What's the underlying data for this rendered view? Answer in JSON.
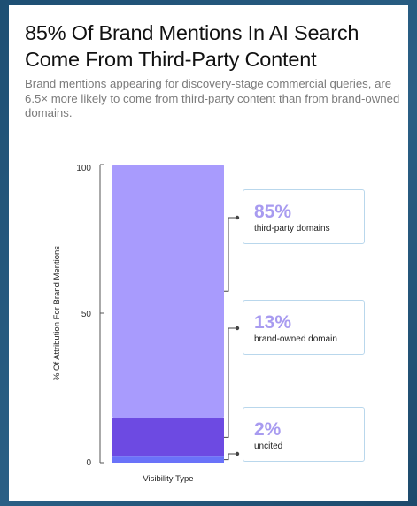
{
  "title": "85% Of Brand Mentions In AI Search Come From Third-Party Content",
  "subtitle": "Brand mentions appearing for discovery-stage commercial queries, are 6.5× more likely to come from third-party content than from brand-owned domains.",
  "colors": {
    "third_party": "#a89bfd",
    "brand_owned": "#6d4ae2",
    "uncited": "#6a72f9",
    "value_text": "#a89bf0",
    "connector": "#444444"
  },
  "chart_data": {
    "type": "bar",
    "stacked": true,
    "title": "85% Of Brand Mentions In AI Search Come From Third-Party Content",
    "xlabel": "Visibility Type",
    "ylabel": "% Of Attribution For Brand Mentions",
    "ylim": [
      0,
      100
    ],
    "yticks": [
      "100",
      "50",
      "0"
    ],
    "series": [
      {
        "name": "third-party domains",
        "value": 85,
        "label": "85%",
        "color": "#a89bfd"
      },
      {
        "name": "brand-owned domain",
        "value": 13,
        "label": "13%",
        "color": "#6d4ae2"
      },
      {
        "name": "uncited",
        "value": 2,
        "label": "2%",
        "color": "#6a72f9"
      }
    ]
  }
}
